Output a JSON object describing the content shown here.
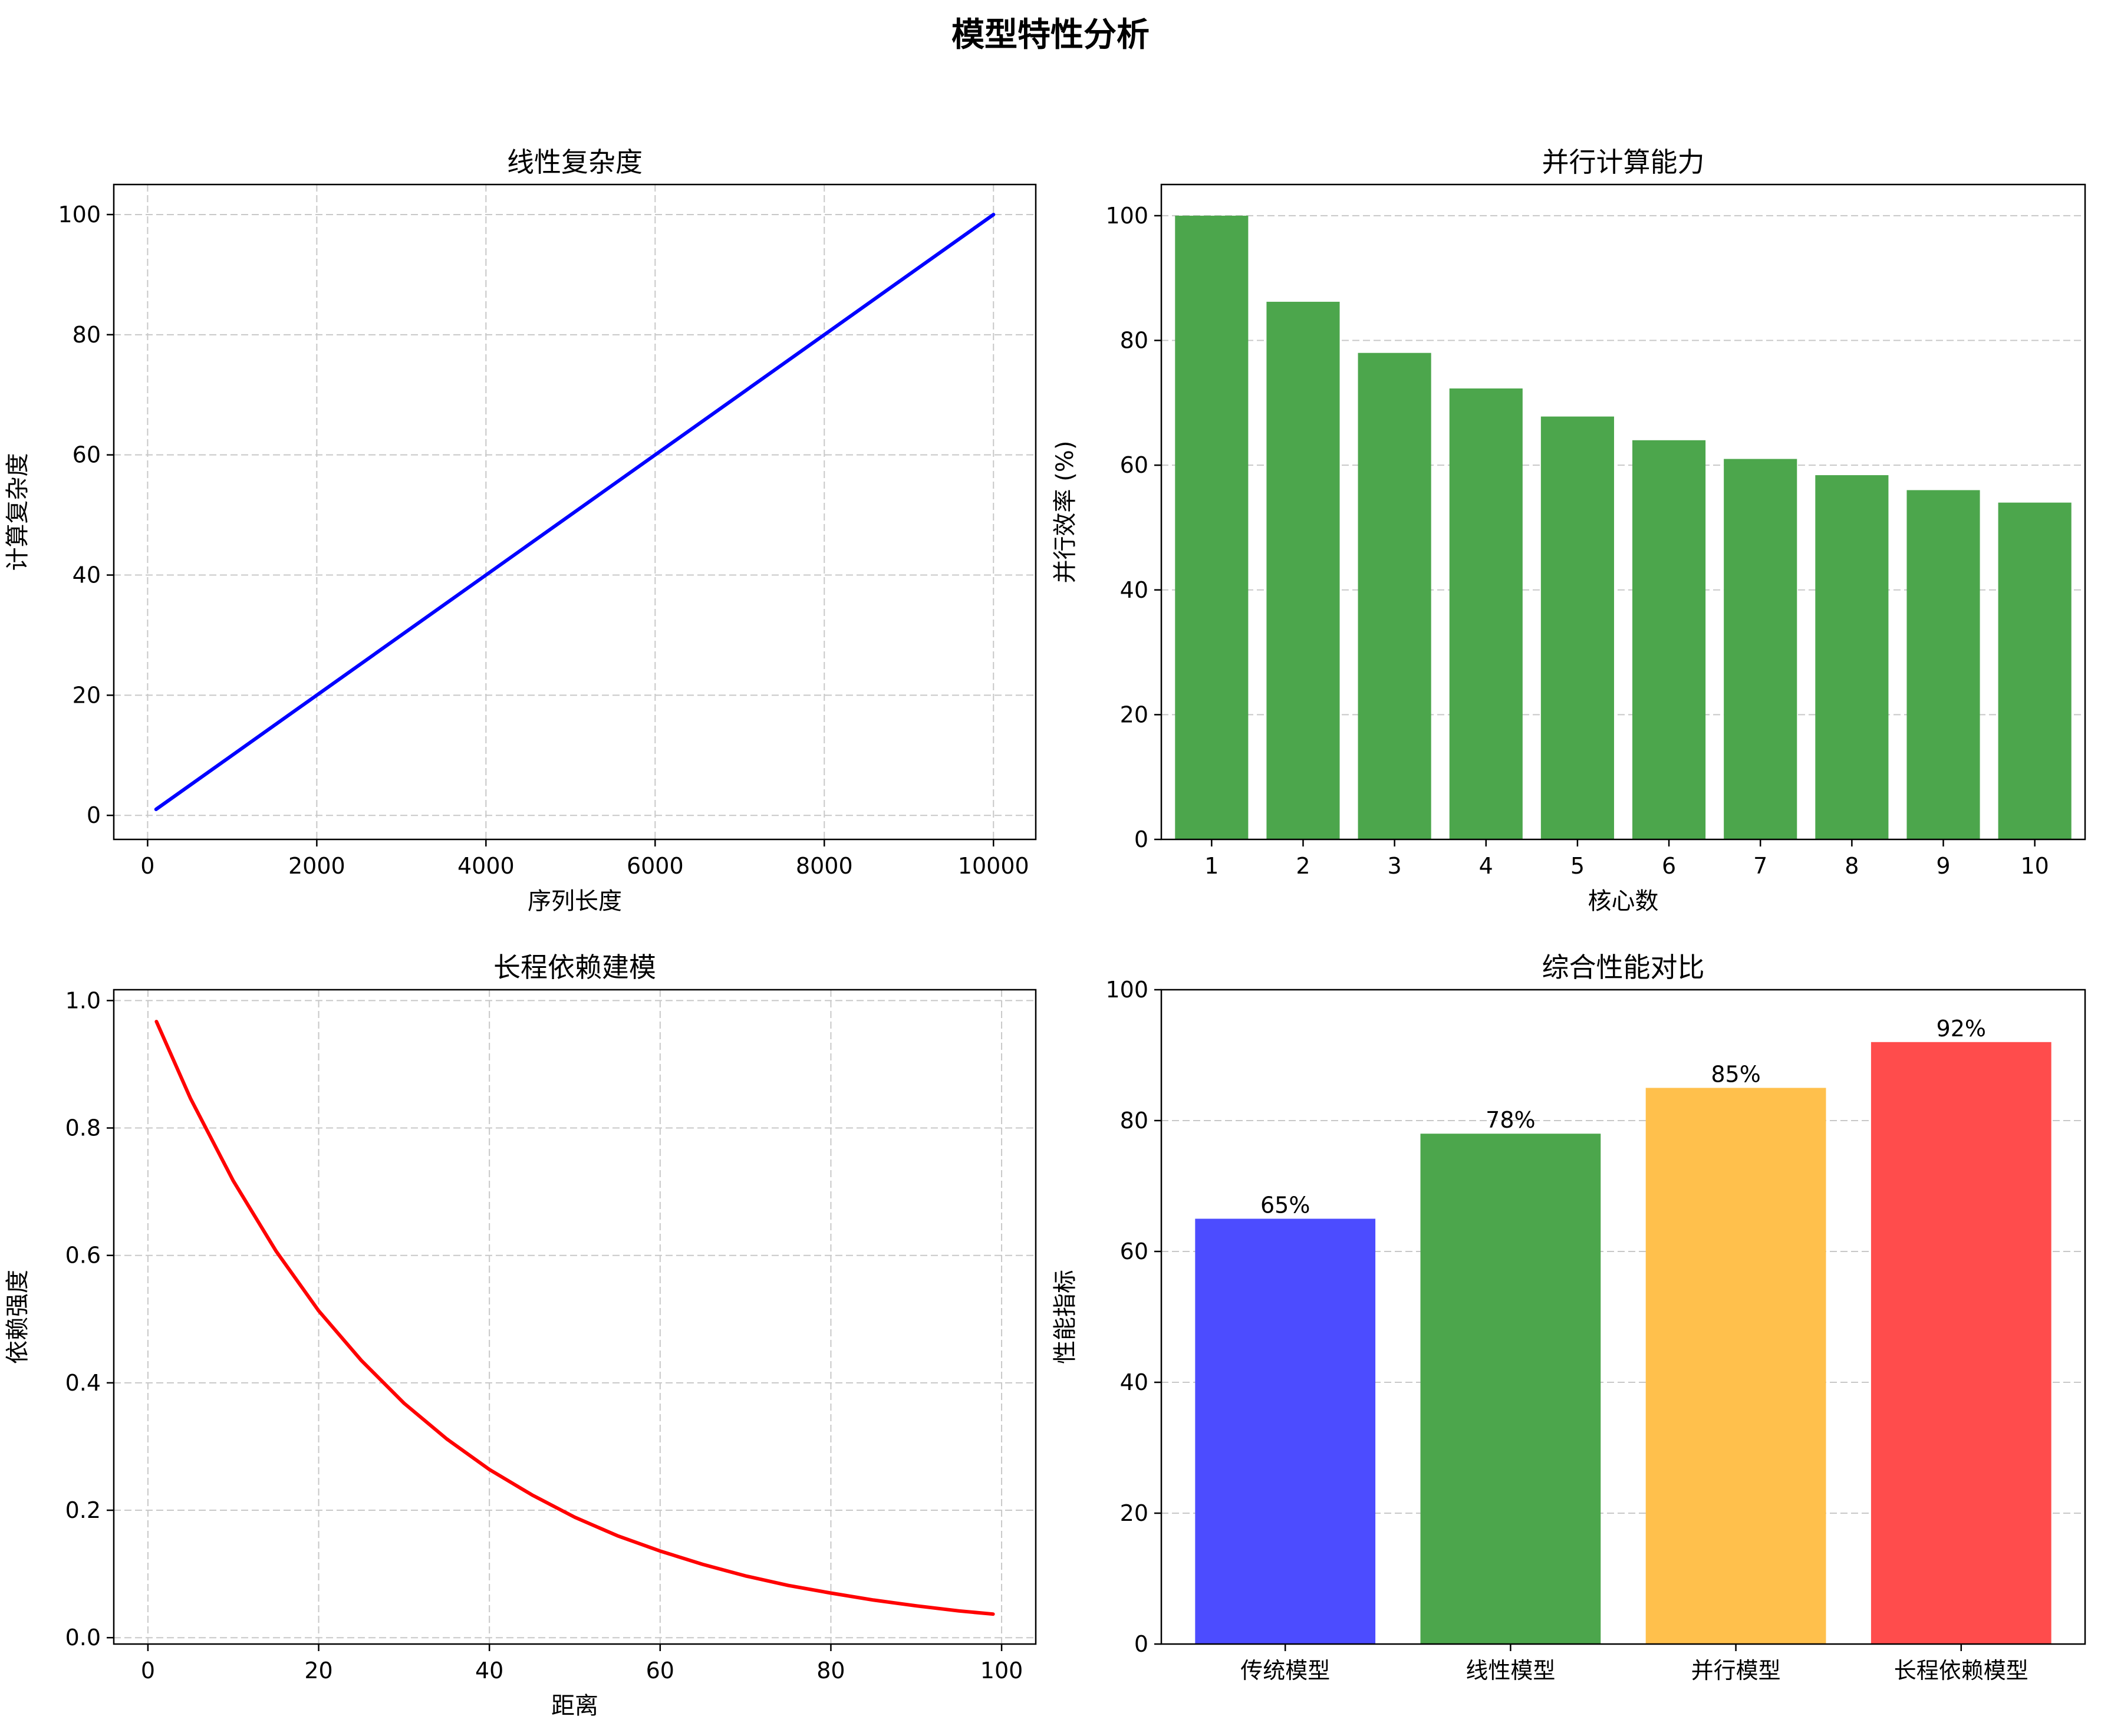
{
  "figure_title": "模型特性分析",
  "chart_data": [
    {
      "id": "linear",
      "type": "line",
      "title": "线性复杂度",
      "xlabel": "序列长度",
      "ylabel": "计算复杂度",
      "xlim": [
        -400,
        10500
      ],
      "ylim": [
        -4,
        105
      ],
      "xticks": [
        0,
        2000,
        4000,
        6000,
        8000,
        10000
      ],
      "yticks": [
        0,
        20,
        40,
        60,
        80,
        100
      ],
      "grid": true,
      "color": "#0000ff",
      "series": [
        {
          "x": [
            100,
            10000
          ],
          "y": [
            1,
            100
          ]
        }
      ]
    },
    {
      "id": "parallel",
      "type": "bar",
      "title": "并行计算能力",
      "xlabel": "核心数",
      "ylabel": "并行效率 (%)",
      "categories": [
        "1",
        "2",
        "3",
        "4",
        "5",
        "6",
        "7",
        "8",
        "9",
        "10"
      ],
      "values": [
        100,
        86.2,
        78,
        72.3,
        67.8,
        64,
        61,
        58.4,
        56,
        54
      ],
      "ylim": [
        0,
        105
      ],
      "yticks": [
        0,
        20,
        40,
        60,
        80,
        100
      ],
      "grid": true,
      "color": "#4ca64c"
    },
    {
      "id": "longrange",
      "type": "line",
      "title": "长程依赖建模",
      "xlabel": "距离",
      "ylabel": "依赖强度",
      "xlim": [
        -4,
        104
      ],
      "ylim": [
        -0.01,
        1.017
      ],
      "xticks": [
        0,
        20,
        40,
        60,
        80,
        100
      ],
      "xtick_labels": [
        "0",
        "20",
        "40",
        "60",
        "80",
        "100"
      ],
      "yticks": [
        0.0,
        0.2,
        0.4,
        0.6,
        0.8,
        1.0
      ],
      "ytick_labels": [
        "0.0",
        "0.2",
        "0.4",
        "0.6",
        "0.8",
        "1.0"
      ],
      "grid": true,
      "color": "#ff0000",
      "series": [
        {
          "x": [
            1,
            5,
            10,
            15,
            20,
            25,
            30,
            35,
            40,
            45,
            50,
            55,
            60,
            65,
            70,
            75,
            80,
            85,
            90,
            95,
            99
          ],
          "y": [
            0.967,
            0.846,
            0.717,
            0.607,
            0.513,
            0.435,
            0.368,
            0.312,
            0.264,
            0.224,
            0.189,
            0.16,
            0.136,
            0.115,
            0.097,
            0.082,
            0.07,
            0.059,
            0.05,
            0.042,
            0.037
          ]
        }
      ]
    },
    {
      "id": "overall",
      "type": "bar",
      "title": "综合性能对比",
      "xlabel": "",
      "ylabel": "性能指标",
      "categories": [
        "传统模型",
        "线性模型",
        "并行模型",
        "长程依赖模型"
      ],
      "values": [
        65,
        78,
        85,
        92
      ],
      "value_labels": [
        "65%",
        "78%",
        "85%",
        "92%"
      ],
      "colors": [
        "#4c4cff",
        "#4ca64c",
        "#ffc04c",
        "#ff4c4c"
      ],
      "ylim": [
        0,
        100
      ],
      "yticks": [
        0,
        20,
        40,
        60,
        80,
        100
      ],
      "grid": true
    }
  ]
}
